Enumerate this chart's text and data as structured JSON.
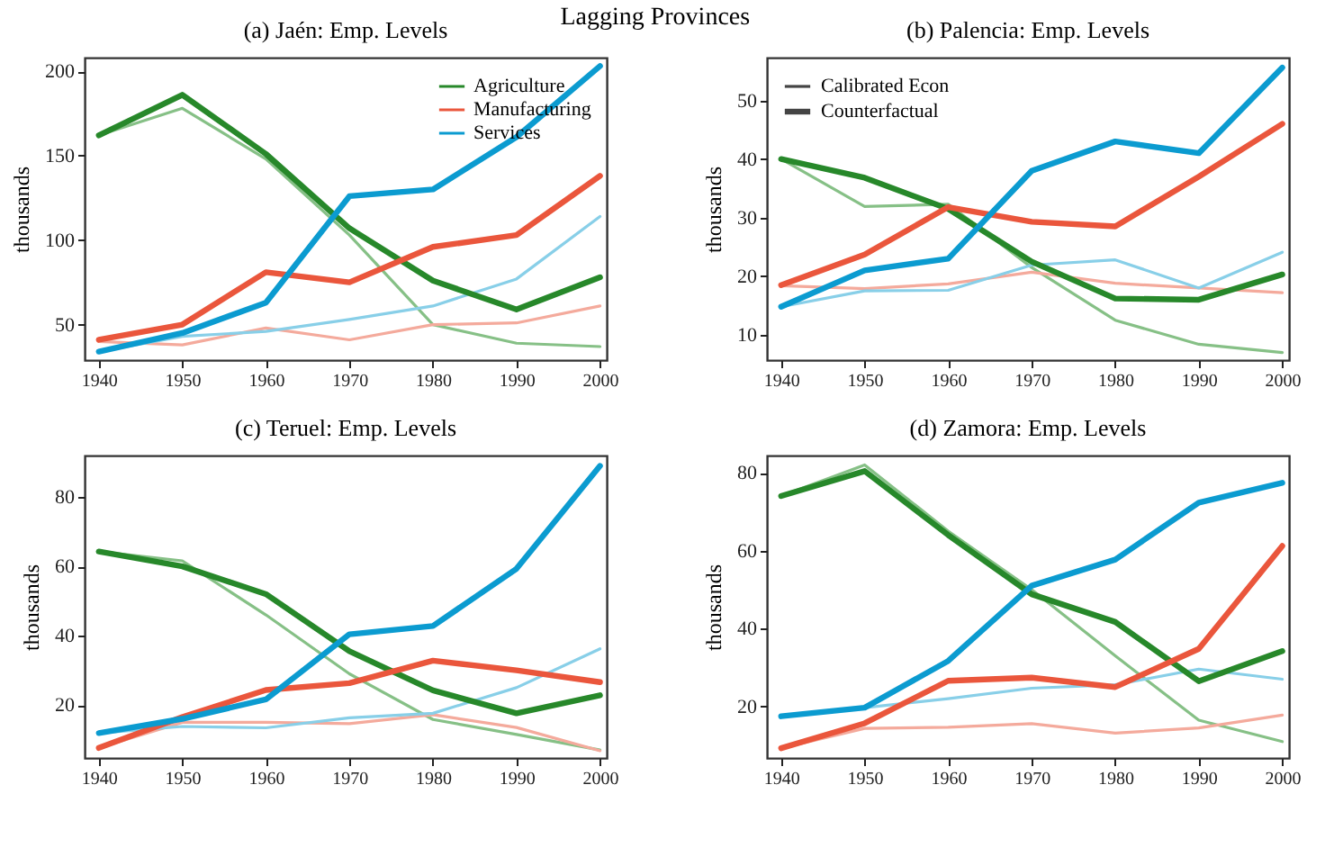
{
  "chart_data": [
    {
      "type": "line",
      "title": "(a) Jaén: Emp. Levels",
      "annotations": [
        "Lagging Provinces"
      ],
      "ylabel": "thousands",
      "x": [
        1940,
        1950,
        1960,
        1970,
        1980,
        1990,
        2000
      ],
      "xlim": [
        1938.3,
        2000.8
      ],
      "xticks": [
        1940,
        1950,
        1960,
        1970,
        1980,
        1990,
        2000
      ],
      "ylim": [
        29,
        208
      ],
      "yticks": [
        50,
        100,
        150,
        200
      ],
      "grid": false,
      "legend": "top right",
      "series": [
        {
          "color": "#86c086",
          "values": [
            162,
            178,
            148,
            103,
            50,
            39,
            37
          ]
        },
        {
          "color": "#f4aa9c",
          "values": [
            40,
            38,
            48,
            41,
            50,
            51,
            61
          ]
        },
        {
          "color": "#88cfe8",
          "values": [
            34,
            43,
            46,
            53,
            61,
            77,
            114
          ]
        },
        {
          "name": "Agriculture",
          "color": "#27882a",
          "values": [
            162,
            186,
            151,
            107,
            76,
            59,
            78
          ]
        },
        {
          "name": "Manufacturing",
          "color": "#ea563c",
          "values": [
            41,
            50,
            81,
            75,
            96,
            103,
            138
          ]
        },
        {
          "name": "Services",
          "color": "#0b9bd0",
          "values": [
            34,
            45,
            63,
            126,
            130,
            161,
            203
          ]
        }
      ]
    },
    {
      "type": "line",
      "title": "(b) Palencia: Emp. Levels",
      "ylabel": "thousands",
      "x": [
        1940,
        1950,
        1960,
        1970,
        1980,
        1990,
        2000
      ],
      "xlim": [
        1938.3,
        2000.8
      ],
      "xticks": [
        1940,
        1950,
        1960,
        1970,
        1980,
        1990,
        2000
      ],
      "ylim": [
        5.7,
        57.3
      ],
      "yticks": [
        10,
        20,
        30,
        40,
        50
      ],
      "grid": false,
      "legend": "top left",
      "annotations": [
        "Calibrated Econ",
        "Counterfactual"
      ],
      "series": [
        {
          "color": "#86c086",
          "values": [
            40,
            31.9,
            32.3,
            21.5,
            12.5,
            8.4,
            7
          ]
        },
        {
          "color": "#f4aa9c",
          "values": [
            18.4,
            17.9,
            18.7,
            20.7,
            18.8,
            18,
            17.2
          ]
        },
        {
          "color": "#88cfe8",
          "values": [
            14.8,
            17.5,
            17.6,
            21.9,
            22.8,
            18,
            24.1
          ]
        },
        {
          "color": "#27882a",
          "values": [
            40,
            36.8,
            31.5,
            22.5,
            16.2,
            16,
            20.3
          ]
        },
        {
          "color": "#ea563c",
          "values": [
            18.5,
            23.7,
            31.8,
            29.3,
            28.5,
            37,
            46
          ]
        },
        {
          "color": "#0b9bd0",
          "values": [
            14.8,
            21,
            23,
            38,
            43,
            41,
            55.6
          ]
        }
      ]
    },
    {
      "type": "line",
      "title": "(c) Teruel: Emp. Levels",
      "ylabel": "thousands",
      "x": [
        1940,
        1950,
        1960,
        1970,
        1980,
        1990,
        2000
      ],
      "xlim": [
        1938.3,
        2000.8
      ],
      "xticks": [
        1940,
        1950,
        1960,
        1970,
        1980,
        1990,
        2000
      ],
      "ylim": [
        4.7,
        92
      ],
      "yticks": [
        20,
        40,
        60,
        80
      ],
      "grid": false,
      "series": [
        {
          "color": "#86c086",
          "values": [
            64.3,
            61.6,
            46,
            29,
            15.8,
            11.5,
            7
          ]
        },
        {
          "color": "#f4aa9c",
          "values": [
            7.6,
            15,
            15,
            14.6,
            17.2,
            13.5,
            6.8
          ]
        },
        {
          "color": "#88cfe8",
          "values": [
            11.9,
            13.8,
            13.4,
            16.3,
            17.6,
            25,
            36.2
          ]
        },
        {
          "color": "#27882a",
          "values": [
            64.3,
            60,
            52,
            35.5,
            24.2,
            17.6,
            22.8
          ]
        },
        {
          "color": "#ea563c",
          "values": [
            7.6,
            16.5,
            24.3,
            26.3,
            32.8,
            30,
            26.6
          ]
        },
        {
          "color": "#0b9bd0",
          "values": [
            11.9,
            16,
            21.6,
            40.4,
            42.8,
            59.3,
            89
          ]
        }
      ]
    },
    {
      "type": "line",
      "title": "(d) Zamora: Emp. Levels",
      "ylabel": "thousands",
      "x": [
        1940,
        1950,
        1960,
        1970,
        1980,
        1990,
        2000
      ],
      "xlim": [
        1938.3,
        2000.8
      ],
      "xticks": [
        1940,
        1950,
        1960,
        1970,
        1980,
        1990,
        2000
      ],
      "ylim": [
        6.8,
        84.4
      ],
      "yticks": [
        20,
        40,
        60,
        80
      ],
      "grid": false,
      "series": [
        {
          "color": "#86c086",
          "values": [
            74,
            82,
            65,
            50,
            33,
            16.5,
            11
          ]
        },
        {
          "color": "#f4aa9c",
          "values": [
            9.3,
            14.4,
            14.7,
            15.6,
            13.2,
            14.5,
            17.8
          ]
        },
        {
          "color": "#88cfe8",
          "values": [
            17.5,
            19.7,
            22,
            24.7,
            25.6,
            29.6,
            27
          ]
        },
        {
          "color": "#27882a",
          "values": [
            74,
            80.4,
            64,
            48.8,
            41.7,
            26.5,
            34.2
          ]
        },
        {
          "color": "#ea563c",
          "values": [
            9.3,
            15.7,
            26.6,
            27.4,
            25,
            34.8,
            61.2
          ]
        },
        {
          "color": "#0b9bd0",
          "values": [
            17.5,
            19.7,
            31.7,
            51,
            57.7,
            72.3,
            77.4
          ]
        }
      ]
    }
  ]
}
